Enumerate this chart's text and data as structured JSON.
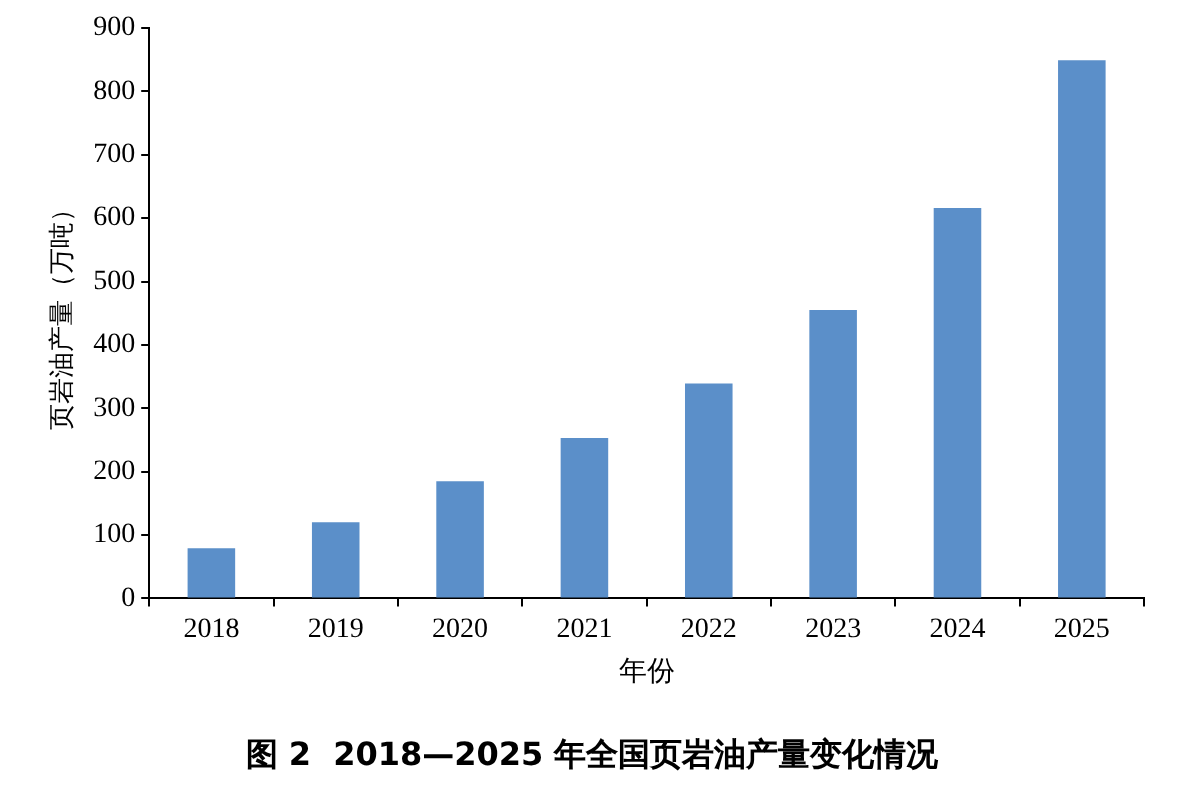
{
  "chart_data": {
    "type": "bar",
    "title": "图 2  2018—2025 年全国页岩油产量变化情况",
    "xlabel": "年份",
    "ylabel": "页岩油产量（万吨）",
    "categories": [
      "2018",
      "2019",
      "2020",
      "2021",
      "2022",
      "2023",
      "2024",
      "2025"
    ],
    "values": [
      79,
      120,
      185,
      253,
      339,
      455,
      616,
      849
    ],
    "color": "#5b8fc9",
    "ylim": [
      0,
      900
    ],
    "yticks": [
      0,
      100,
      200,
      300,
      400,
      500,
      600,
      700,
      800,
      900
    ],
    "grid": false,
    "legend": false
  }
}
